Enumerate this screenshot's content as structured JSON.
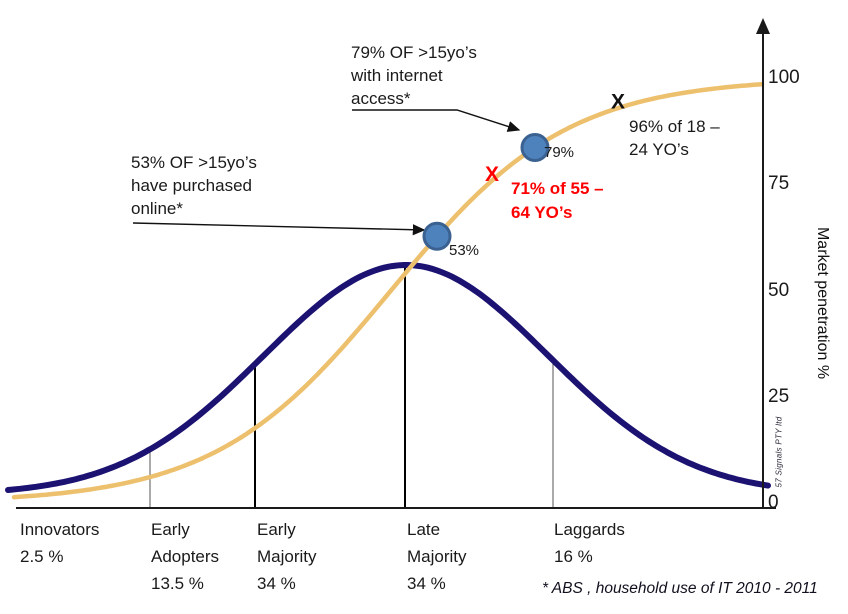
{
  "chart_data": {
    "type": "line",
    "title": "",
    "description": "Diffusion of innovation adopter bell curve overlaid with market penetration S-curve",
    "y_axis": {
      "label": "Market penetration %",
      "ticks": [
        100,
        75,
        50,
        25,
        0
      ],
      "range": [
        0,
        100
      ],
      "side": "right"
    },
    "x_axis": {
      "categories": [
        {
          "name": "Innovators",
          "share": "2.5 %"
        },
        {
          "name": "Early\nAdopters",
          "share": "13.5 %"
        },
        {
          "name": "Early\nMajority",
          "share": "34 %"
        },
        {
          "name": "Late\nMajority",
          "share": "34 %"
        },
        {
          "name": "Laggards",
          "share": "16 %"
        }
      ]
    },
    "series": [
      {
        "name": "adopter-distribution-bell-curve",
        "type": "gaussian",
        "color": "#1b1272",
        "peak_pct": 56,
        "base_pct": 2
      },
      {
        "name": "market-penetration-s-curve",
        "type": "logistic",
        "color": "#edc06e",
        "start_pct": 1,
        "end_pct": 99
      }
    ],
    "points": [
      {
        "id": "dot53",
        "marker": "dot",
        "label": "53%",
        "pct": 53,
        "fill": "#4d82bd",
        "stroke": "#3b6191"
      },
      {
        "id": "dot79",
        "marker": "dot",
        "label": "79%",
        "pct": 79,
        "fill": "#4d82bd",
        "stroke": "#3b6191"
      },
      {
        "id": "x71",
        "marker": "X",
        "glyph": "X",
        "color": "#fe0000",
        "pct": 71
      },
      {
        "id": "x96",
        "marker": "X",
        "glyph": "X",
        "color": "#111111",
        "pct": 96
      }
    ]
  },
  "annotations": {
    "internet_access": "79% OF >15yo’s\nwith internet\naccess*",
    "purchased_online": "53% OF >15yo’s\nhave purchased\nonline*",
    "age_18_24": "96% of 18 –\n24 YO’s",
    "age_55_64": "71% of 55 –\n64 YO’s",
    "footnote": "* ABS , household use of IT 2010 - 2011",
    "watermark": "57 Signals  PTY ltd"
  },
  "colors": {
    "bell": "#1b1272",
    "s_curve": "#edc06e",
    "dot_fill": "#4d82bd",
    "dot_stroke": "#3b6191",
    "red": "#fe0000",
    "axis": "#1a1a1a"
  }
}
